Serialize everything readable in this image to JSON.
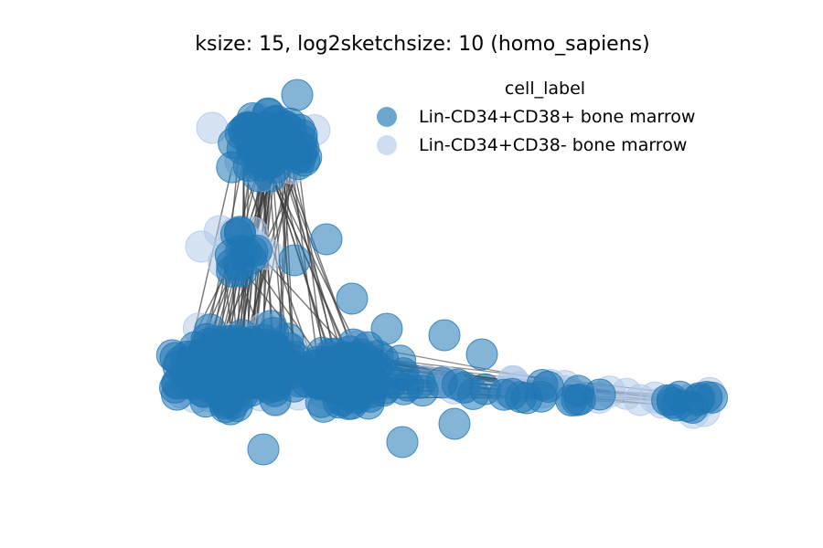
{
  "title": "ksize: 15, log2sketchsize: 10 (homo_sapiens)",
  "legend": {
    "title": "cell_label",
    "items": [
      {
        "label": "Lin-CD34+CD38+ bone marrow",
        "color": "#1f77b4",
        "opacity": 0.55
      },
      {
        "label": "Lin-CD34+CD38- bone marrow",
        "color": "#aec7e8",
        "opacity": 0.5
      }
    ]
  },
  "edge_color": "#3a3a3a"
}
